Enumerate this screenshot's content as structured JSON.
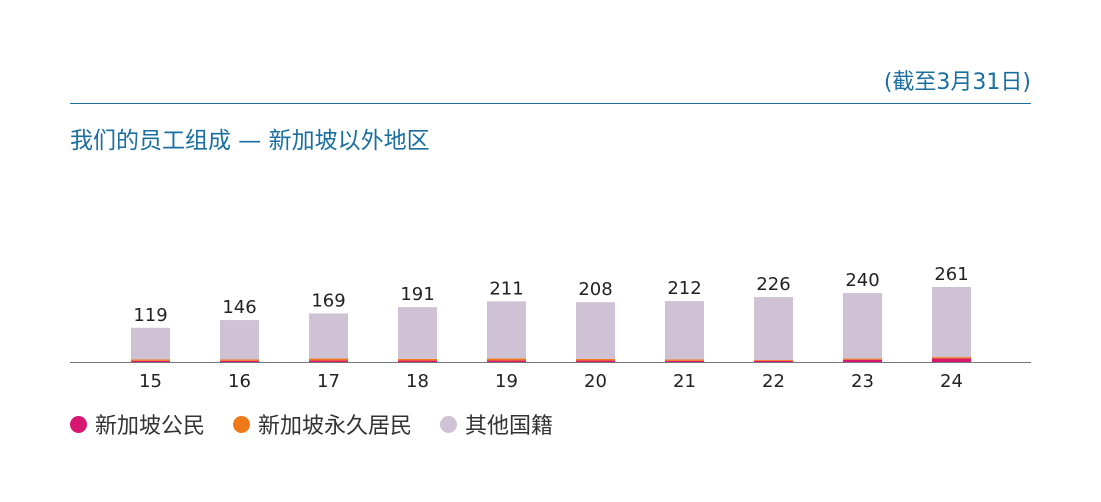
{
  "header": {
    "as_of": "(截至3月31日)",
    "title": "我们的员工组成 — 新加坡以外地区"
  },
  "colors": {
    "accent": "#1a6fa0",
    "singapore_citizens": "#d6166f",
    "singapore_pr": "#f07a1a",
    "other_nationalities": "#cfc2d4"
  },
  "legend": [
    {
      "label": "新加坡公民",
      "color": "#d6166f"
    },
    {
      "label": "新加坡永久居民",
      "color": "#f07a1a"
    },
    {
      "label": "其他国籍",
      "color": "#cfc2d4"
    }
  ],
  "chart_data": {
    "type": "bar",
    "stacked": true,
    "title": "我们的员工组成 — 新加坡以外地区",
    "categories": [
      "15",
      "16",
      "17",
      "18",
      "19",
      "20",
      "21",
      "22",
      "23",
      "24"
    ],
    "totals": [
      119,
      146,
      169,
      191,
      211,
      208,
      212,
      226,
      240,
      261
    ],
    "series": [
      {
        "name": "新加坡公民",
        "values": [
          4,
          4,
          5,
          5,
          5,
          5,
          4,
          4,
          8,
          12
        ]
      },
      {
        "name": "新加坡永久居民",
        "values": [
          5,
          5,
          7,
          6,
          7,
          6,
          5,
          3,
          4,
          5
        ]
      },
      {
        "name": "其他国籍",
        "values": [
          110,
          137,
          157,
          180,
          199,
          197,
          203,
          219,
          228,
          244
        ]
      }
    ],
    "ylim": [
      0,
      300
    ],
    "grid": false,
    "legend_position": "bottom-left"
  }
}
